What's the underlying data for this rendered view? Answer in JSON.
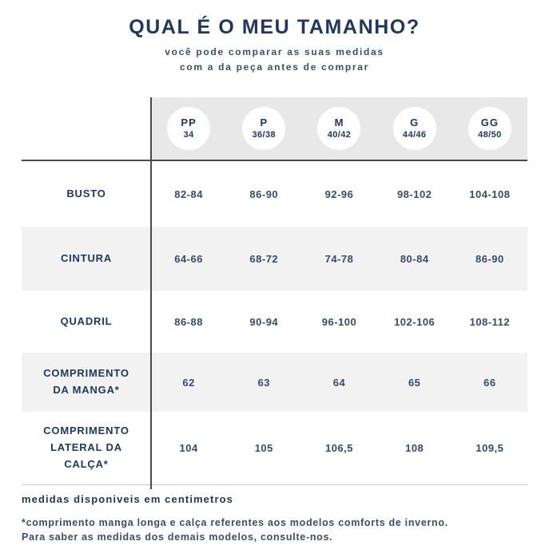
{
  "header": {
    "title": "QUAL É O MEU TAMANHO?",
    "subtitle_line1": "você pode comparar as suas medidas",
    "subtitle_line2": "com a da peça antes de comprar"
  },
  "table": {
    "sizes": [
      {
        "label": "PP",
        "range": "34"
      },
      {
        "label": "P",
        "range": "36/38"
      },
      {
        "label": "M",
        "range": "40/42"
      },
      {
        "label": "G",
        "range": "44/46"
      },
      {
        "label": "GG",
        "range": "48/50"
      }
    ],
    "rows": [
      {
        "lines": [
          "BUSTO",
          ""
        ],
        "values": [
          "82-84",
          "86-90",
          "92-96",
          "98-102",
          "104-108"
        ]
      },
      {
        "lines": [
          "CINTURA",
          ""
        ],
        "values": [
          "64-66",
          "68-72",
          "74-78",
          "80-84",
          "86-90"
        ]
      },
      {
        "lines": [
          "QUADRIL",
          ""
        ],
        "values": [
          "86-88",
          "90-94",
          "96-100",
          "102-106",
          "108-112"
        ]
      },
      {
        "lines": [
          "COMPRIMENTO",
          "DA MANGA*"
        ],
        "values": [
          "62",
          "63",
          "64",
          "65",
          "66"
        ]
      },
      {
        "lines": [
          "COMPRIMENTO",
          "LATERAL DA CALÇA*"
        ],
        "values": [
          "104",
          "105",
          "106,5",
          "108",
          "109,5"
        ]
      }
    ]
  },
  "footer": {
    "bold_note": "medidas disponiveis em centimetros",
    "note_line1": "*comprimento manga longa e calça referentes aos modelos comforts de inverno.",
    "note_line2": "Para saber as medidas dos demais modelos, consulte-nos."
  },
  "colors": {
    "navy": "#21375f",
    "navy-soft": "#3d4c68",
    "navy-values": "#3a4a66",
    "header-gray": "#e8e8e8",
    "row-gray": "#f2f2f2",
    "line-dark": "#4a4a4a",
    "line-light": "#c9c9c9"
  },
  "chart_data": {
    "type": "table",
    "title": "QUAL É O MEU TAMANHO?",
    "subtitle": "você pode comparar as suas medidas com a da peça antes de comprar",
    "columns": [
      "PP 34",
      "P 36/38",
      "M 40/42",
      "G 44/46",
      "GG 48/50"
    ],
    "row_labels": [
      "BUSTO",
      "CINTURA",
      "QUADRIL",
      "COMPRIMENTO DA MANGA*",
      "COMPRIMENTO LATERAL DA CALÇA*"
    ],
    "rows": [
      [
        "82-84",
        "86-90",
        "92-96",
        "98-102",
        "104-108"
      ],
      [
        "64-66",
        "68-72",
        "74-78",
        "80-84",
        "86-90"
      ],
      [
        "86-88",
        "90-94",
        "96-100",
        "102-106",
        "108-112"
      ],
      [
        "62",
        "63",
        "64",
        "65",
        "66"
      ],
      [
        "104",
        "105",
        "106,5",
        "108",
        "109,5"
      ]
    ],
    "units": "centimetros",
    "notes": [
      "medidas disponiveis em centimetros",
      "*comprimento manga longa e calça referentes aos modelos comforts de inverno.",
      "Para saber as medidas dos demais modelos, consulte-nos."
    ],
    "layout_hints": {
      "alternating_row_shading": true,
      "header_shaded": true,
      "size_badges": "white circles"
    }
  }
}
